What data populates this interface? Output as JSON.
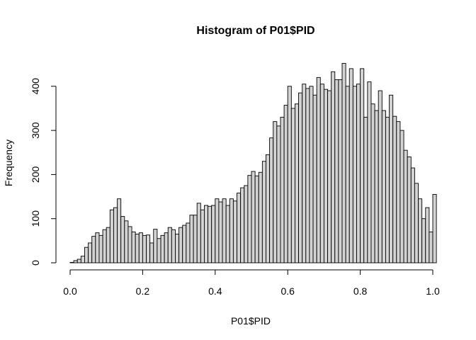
{
  "chart_data": {
    "type": "bar",
    "title": "Histogram of P01$PID",
    "xlabel": "P01$PID",
    "ylabel": "Frequency",
    "xlim": [
      0,
      1
    ],
    "ylim": [
      0,
      450
    ],
    "bin_width": 0.01,
    "x_ticks": [
      "0.0",
      "0.2",
      "0.4",
      "0.6",
      "0.8",
      "1.0"
    ],
    "y_ticks": [
      "0",
      "100",
      "200",
      "300",
      "400"
    ],
    "bar_fill": "#d3d3d3",
    "grid": false,
    "values": [
      1,
      5,
      8,
      15,
      35,
      45,
      60,
      68,
      62,
      75,
      80,
      120,
      125,
      145,
      105,
      95,
      82,
      70,
      65,
      68,
      62,
      63,
      45,
      76,
      55,
      62,
      68,
      80,
      75,
      65,
      80,
      85,
      90,
      108,
      108,
      135,
      120,
      130,
      128,
      130,
      145,
      138,
      145,
      130,
      145,
      140,
      158,
      170,
      175,
      198,
      207,
      197,
      205,
      230,
      245,
      283,
      320,
      310,
      330,
      357,
      400,
      350,
      360,
      385,
      405,
      395,
      400,
      380,
      420,
      405,
      393,
      390,
      433,
      415,
      415,
      452,
      400,
      440,
      400,
      405,
      440,
      330,
      410,
      360,
      345,
      390,
      345,
      330,
      380,
      332,
      320,
      300,
      255,
      240,
      215,
      180,
      145,
      100,
      125,
      70,
      155
    ]
  }
}
